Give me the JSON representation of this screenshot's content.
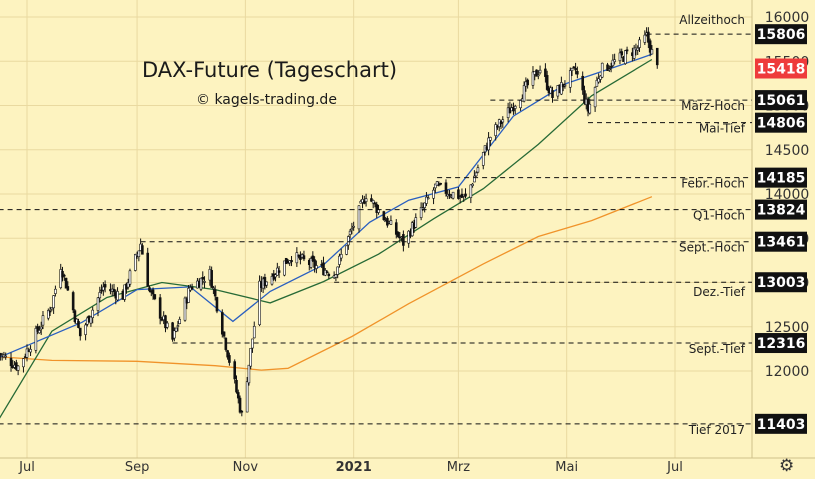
{
  "chart_data": {
    "type": "candlestick",
    "title": "DAX-Future (Tageschart)",
    "subtitle": "© kagels-trading.de",
    "y_ticks": [
      12000,
      12500,
      13000,
      13500,
      14000,
      14500,
      15000,
      15500,
      16000
    ],
    "ylim": [
      11300,
      16080
    ],
    "x_ticks": [
      "Jul",
      "Sep",
      "Nov",
      "2021",
      "Mrz",
      "Mai",
      "Jul"
    ],
    "levels": [
      {
        "name": "Allzeithoch",
        "value": 15806,
        "label": "15806",
        "start": "2021-06-15"
      },
      {
        "name": "März-Hoch",
        "value": 15061,
        "label": "15061",
        "start": "2021-03-19"
      },
      {
        "name": "Mai-Tief",
        "value": 14806,
        "label": "14806",
        "start": "2021-05-13"
      },
      {
        "name": "Febr.-Hoch",
        "value": 14185,
        "label": "14185",
        "start": "2021-02-17"
      },
      {
        "name": "Q1-Hoch",
        "value": 13824,
        "label": "13824",
        "start": "2020-06-15"
      },
      {
        "name": "Sept.-Hoch",
        "value": 13461,
        "label": "13461",
        "start": "2020-09-03"
      },
      {
        "name": "Dez.-Tief",
        "value": 13003,
        "label": "13003",
        "start": "2020-12-21"
      },
      {
        "name": "Sept.-Tief",
        "value": 12316,
        "label": "12316",
        "start": "2020-09-21"
      },
      {
        "name": "Tief 2017",
        "value": 11403,
        "label": "11403",
        "start": "2020-06-15"
      }
    ],
    "last_price": {
      "value": 15418,
      "label": "15418"
    },
    "series": [
      {
        "type": "candles",
        "color": "#111111",
        "up_fill": "#ffffff",
        "down_fill": "#111111",
        "x": [
          "2020-06-15",
          "2021-06-21"
        ]
      },
      {
        "type": "moving_average",
        "color": "#2a5fc0",
        "x": [
          "2020-06-15",
          "2020-08-01",
          "2020-09-01",
          "2020-10-01",
          "2020-10-25",
          "2020-11-15",
          "2020-12-15",
          "2021-01-10",
          "2021-02-01",
          "2021-03-01",
          "2021-04-01",
          "2021-05-01",
          "2021-06-01",
          "2021-06-18"
        ],
        "values": [
          12150,
          12550,
          12920,
          12950,
          12560,
          12900,
          13200,
          13680,
          13930,
          14080,
          14880,
          15250,
          15460,
          15580
        ]
      },
      {
        "type": "moving_average",
        "color": "#276a36",
        "x": [
          "2020-06-15",
          "2020-07-15",
          "2020-08-15",
          "2020-09-15",
          "2020-10-15",
          "2020-11-15",
          "2020-12-15",
          "2021-01-15",
          "2021-02-15",
          "2021-03-15",
          "2021-04-15",
          "2021-05-15",
          "2021-06-18"
        ],
        "values": [
          11450,
          12450,
          12830,
          13000,
          12920,
          12770,
          13010,
          13320,
          13720,
          14060,
          14560,
          15110,
          15520
        ]
      },
      {
        "type": "moving_average",
        "color": "#f0932a",
        "x": [
          "2020-06-15",
          "2020-07-15",
          "2020-09-01",
          "2020-10-15",
          "2020-11-10",
          "2020-11-25",
          "2020-12-31",
          "2021-02-01",
          "2021-03-15",
          "2021-04-15",
          "2021-05-15",
          "2021-06-18"
        ],
        "values": [
          12160,
          12120,
          12110,
          12060,
          12010,
          12030,
          12390,
          12760,
          13210,
          13520,
          13700,
          13970
        ]
      }
    ]
  },
  "ui": {
    "settings_icon": "gear-icon"
  }
}
